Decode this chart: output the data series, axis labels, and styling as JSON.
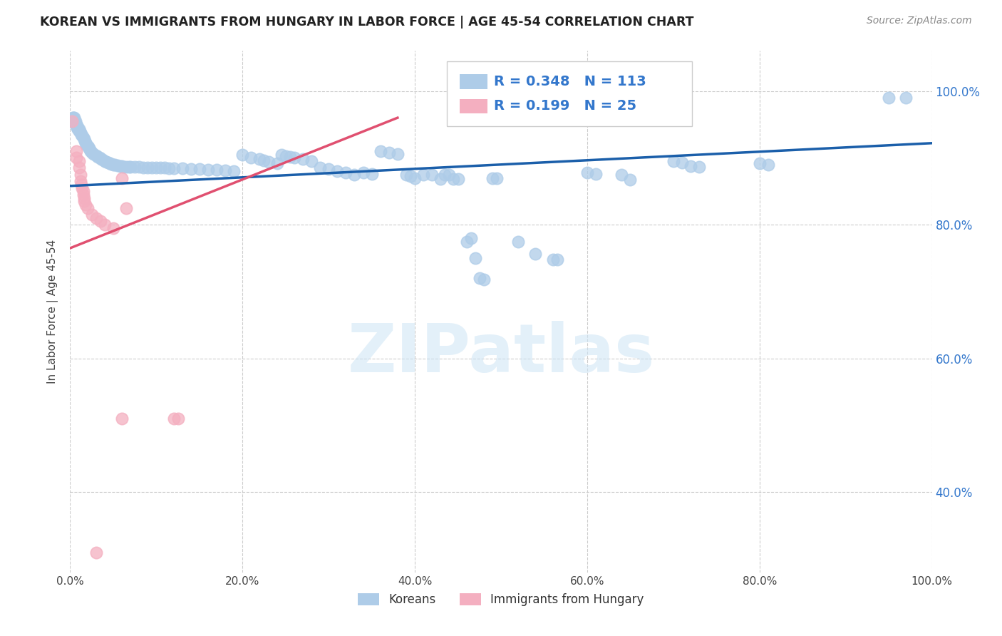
{
  "title": "KOREAN VS IMMIGRANTS FROM HUNGARY IN LABOR FORCE | AGE 45-54 CORRELATION CHART",
  "source": "Source: ZipAtlas.com",
  "ylabel": "In Labor Force | Age 45-54",
  "xlim": [
    0.0,
    1.0
  ],
  "ylim": [
    0.28,
    1.06
  ],
  "xticks": [
    0.0,
    0.2,
    0.4,
    0.6,
    0.8,
    1.0
  ],
  "xtick_labels": [
    "0.0%",
    "20.0%",
    "40.0%",
    "60.0%",
    "80.0%",
    "100.0%"
  ],
  "yticks": [
    0.4,
    0.6,
    0.8,
    1.0
  ],
  "ytick_labels": [
    "40.0%",
    "60.0%",
    "80.0%",
    "100.0%"
  ],
  "watermark_text": "ZIPatlas",
  "korean_color": "#aecce8",
  "hungarian_color": "#f4afc0",
  "korean_line_color": "#1b5faa",
  "hungarian_line_color": "#e05070",
  "korean_R": 0.348,
  "korean_N": 113,
  "hungarian_R": 0.199,
  "hungarian_N": 25,
  "background_color": "#ffffff",
  "grid_color": "#cccccc",
  "title_color": "#222222",
  "right_tick_color": "#3377cc",
  "legend_label_color": "#3377cc",
  "korean_line_x0": 0.0,
  "korean_line_x1": 1.0,
  "korean_line_y0": 0.858,
  "korean_line_y1": 0.922,
  "hungarian_line_x0": 0.0,
  "hungarian_line_x1": 0.38,
  "hungarian_line_y0": 0.765,
  "hungarian_line_y1": 0.96,
  "korean_points": [
    [
      0.003,
      0.96
    ],
    [
      0.004,
      0.96
    ],
    [
      0.005,
      0.96
    ],
    [
      0.005,
      0.955
    ],
    [
      0.006,
      0.955
    ],
    [
      0.006,
      0.95
    ],
    [
      0.007,
      0.95
    ],
    [
      0.007,
      0.948
    ],
    [
      0.008,
      0.948
    ],
    [
      0.008,
      0.945
    ],
    [
      0.009,
      0.945
    ],
    [
      0.009,
      0.943
    ],
    [
      0.01,
      0.943
    ],
    [
      0.01,
      0.94
    ],
    [
      0.011,
      0.94
    ],
    [
      0.012,
      0.938
    ],
    [
      0.013,
      0.935
    ],
    [
      0.014,
      0.933
    ],
    [
      0.015,
      0.93
    ],
    [
      0.016,
      0.928
    ],
    [
      0.017,
      0.925
    ],
    [
      0.018,
      0.923
    ],
    [
      0.019,
      0.92
    ],
    [
      0.02,
      0.918
    ],
    [
      0.021,
      0.916
    ],
    [
      0.022,
      0.914
    ],
    [
      0.023,
      0.912
    ],
    [
      0.024,
      0.91
    ],
    [
      0.025,
      0.908
    ],
    [
      0.027,
      0.906
    ],
    [
      0.03,
      0.904
    ],
    [
      0.032,
      0.902
    ],
    [
      0.034,
      0.9
    ],
    [
      0.036,
      0.898
    ],
    [
      0.038,
      0.897
    ],
    [
      0.04,
      0.895
    ],
    [
      0.042,
      0.894
    ],
    [
      0.044,
      0.893
    ],
    [
      0.046,
      0.892
    ],
    [
      0.048,
      0.891
    ],
    [
      0.05,
      0.89
    ],
    [
      0.052,
      0.89
    ],
    [
      0.055,
      0.889
    ],
    [
      0.058,
      0.888
    ],
    [
      0.06,
      0.888
    ],
    [
      0.062,
      0.887
    ],
    [
      0.065,
      0.887
    ],
    [
      0.068,
      0.887
    ],
    [
      0.07,
      0.887
    ],
    [
      0.075,
      0.887
    ],
    [
      0.08,
      0.887
    ],
    [
      0.085,
      0.886
    ],
    [
      0.09,
      0.886
    ],
    [
      0.095,
      0.886
    ],
    [
      0.1,
      0.885
    ],
    [
      0.105,
      0.885
    ],
    [
      0.11,
      0.885
    ],
    [
      0.115,
      0.884
    ],
    [
      0.12,
      0.884
    ],
    [
      0.13,
      0.884
    ],
    [
      0.14,
      0.883
    ],
    [
      0.15,
      0.883
    ],
    [
      0.16,
      0.882
    ],
    [
      0.17,
      0.882
    ],
    [
      0.18,
      0.881
    ],
    [
      0.19,
      0.88
    ],
    [
      0.2,
      0.905
    ],
    [
      0.21,
      0.9
    ],
    [
      0.22,
      0.898
    ],
    [
      0.225,
      0.896
    ],
    [
      0.23,
      0.894
    ],
    [
      0.24,
      0.892
    ],
    [
      0.245,
      0.905
    ],
    [
      0.25,
      0.903
    ],
    [
      0.255,
      0.901
    ],
    [
      0.26,
      0.9
    ],
    [
      0.27,
      0.898
    ],
    [
      0.28,
      0.895
    ],
    [
      0.29,
      0.885
    ],
    [
      0.3,
      0.883
    ],
    [
      0.31,
      0.88
    ],
    [
      0.32,
      0.878
    ],
    [
      0.33,
      0.875
    ],
    [
      0.34,
      0.878
    ],
    [
      0.35,
      0.876
    ],
    [
      0.36,
      0.91
    ],
    [
      0.37,
      0.908
    ],
    [
      0.38,
      0.906
    ],
    [
      0.39,
      0.875
    ],
    [
      0.395,
      0.873
    ],
    [
      0.4,
      0.87
    ],
    [
      0.41,
      0.875
    ],
    [
      0.42,
      0.875
    ],
    [
      0.43,
      0.868
    ],
    [
      0.435,
      0.875
    ],
    [
      0.44,
      0.875
    ],
    [
      0.445,
      0.868
    ],
    [
      0.45,
      0.868
    ],
    [
      0.46,
      0.775
    ],
    [
      0.465,
      0.78
    ],
    [
      0.47,
      0.75
    ],
    [
      0.475,
      0.72
    ],
    [
      0.48,
      0.718
    ],
    [
      0.49,
      0.87
    ],
    [
      0.495,
      0.87
    ],
    [
      0.52,
      0.775
    ],
    [
      0.54,
      0.756
    ],
    [
      0.56,
      0.748
    ],
    [
      0.565,
      0.748
    ],
    [
      0.6,
      0.878
    ],
    [
      0.61,
      0.876
    ],
    [
      0.64,
      0.875
    ],
    [
      0.65,
      0.867
    ],
    [
      0.7,
      0.895
    ],
    [
      0.71,
      0.893
    ],
    [
      0.72,
      0.888
    ],
    [
      0.73,
      0.887
    ],
    [
      0.8,
      0.892
    ],
    [
      0.81,
      0.89
    ],
    [
      0.95,
      0.99
    ],
    [
      0.97,
      0.99
    ]
  ],
  "hungarian_points": [
    [
      0.002,
      0.955
    ],
    [
      0.007,
      0.91
    ],
    [
      0.007,
      0.9
    ],
    [
      0.01,
      0.895
    ],
    [
      0.01,
      0.885
    ],
    [
      0.012,
      0.875
    ],
    [
      0.012,
      0.865
    ],
    [
      0.013,
      0.86
    ],
    [
      0.014,
      0.855
    ],
    [
      0.015,
      0.85
    ],
    [
      0.015,
      0.845
    ],
    [
      0.016,
      0.84
    ],
    [
      0.016,
      0.835
    ],
    [
      0.018,
      0.83
    ],
    [
      0.02,
      0.825
    ],
    [
      0.025,
      0.815
    ],
    [
      0.03,
      0.81
    ],
    [
      0.035,
      0.805
    ],
    [
      0.04,
      0.8
    ],
    [
      0.05,
      0.795
    ],
    [
      0.06,
      0.87
    ],
    [
      0.065,
      0.825
    ],
    [
      0.12,
      0.51
    ],
    [
      0.125,
      0.51
    ],
    [
      0.06,
      0.51
    ],
    [
      0.03,
      0.31
    ]
  ]
}
